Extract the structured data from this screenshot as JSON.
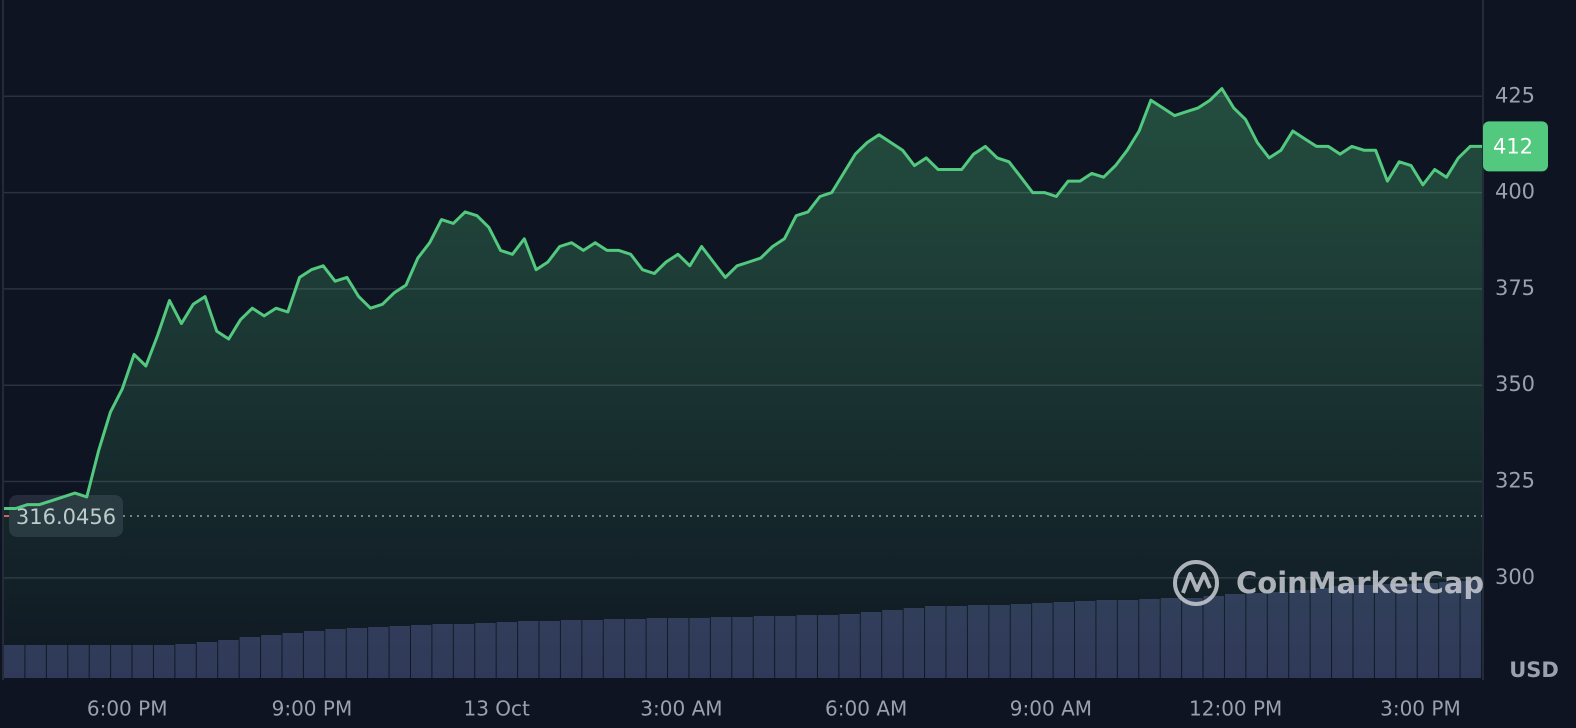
{
  "chart_data": {
    "type": "line",
    "color": "#52c97f",
    "values": [
      318,
      318,
      319,
      319,
      320,
      321,
      322,
      321,
      333,
      343,
      349,
      358,
      355,
      363,
      372,
      366,
      371,
      373,
      364,
      362,
      367,
      370,
      368,
      370,
      369,
      378,
      380,
      381,
      377,
      378,
      373,
      370,
      371,
      374,
      376,
      383,
      387,
      393,
      392,
      395,
      394,
      391,
      385,
      384,
      388,
      380,
      382,
      386,
      387,
      385,
      387,
      385,
      385,
      384,
      380,
      379,
      382,
      384,
      381,
      386,
      382,
      378,
      381,
      382,
      383,
      386,
      388,
      394,
      395,
      399,
      400,
      405,
      410,
      413,
      415,
      413,
      411,
      407,
      409,
      406,
      406,
      406,
      410,
      412,
      409,
      408,
      404,
      400,
      400,
      399,
      403,
      403,
      405,
      404,
      407,
      411,
      416,
      424,
      422,
      420,
      421,
      422,
      424,
      427,
      422,
      419,
      413,
      409,
      411,
      416,
      414,
      412,
      412,
      410,
      412,
      411,
      411,
      403,
      408,
      407,
      402,
      406,
      404,
      409,
      412,
      412
    ],
    "xlim": [
      0,
      24
    ],
    "xticks": [
      {
        "value": 2,
        "label": "6:00 PM"
      },
      {
        "value": 5,
        "label": "9:00 PM"
      },
      {
        "value": 8,
        "label": "13 Oct"
      },
      {
        "value": 11,
        "label": "3:00 AM"
      },
      {
        "value": 14,
        "label": "6:00 AM"
      },
      {
        "value": 17,
        "label": "9:00 AM"
      },
      {
        "value": 20,
        "label": "12:00 PM"
      },
      {
        "value": 23,
        "label": "3:00 PM"
      }
    ],
    "ylim": [
      274,
      450
    ],
    "yticks": [
      300,
      325,
      350,
      375,
      400,
      425
    ],
    "grid": true,
    "reference_line": 316.0456,
    "current_price": 412,
    "currency": "USD",
    "watermark": "CoinMarketCap",
    "volume": {
      "color": "#2f3658",
      "values": [
        33,
        33,
        33,
        33,
        33,
        33,
        33,
        33,
        34,
        36,
        38,
        41,
        43,
        45,
        47,
        49,
        50,
        51,
        52,
        53,
        54,
        54,
        55,
        56,
        57,
        57,
        58,
        58,
        59,
        59,
        60,
        60,
        60,
        61,
        61,
        62,
        62,
        63,
        63,
        64,
        66,
        68,
        70,
        72,
        72,
        73,
        73,
        74,
        75,
        76,
        77,
        78,
        78,
        79,
        80,
        80,
        82,
        84,
        85,
        86,
        88,
        90,
        92,
        93,
        94,
        94,
        95,
        96,
        97
      ]
    }
  }
}
